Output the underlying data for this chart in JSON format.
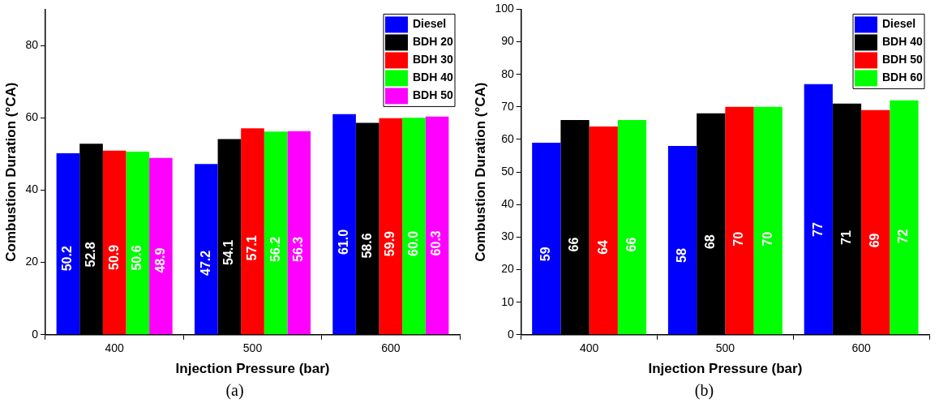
{
  "chart_data": [
    {
      "type": "bar",
      "xlabel": "Injection Pressure (bar)",
      "ylabel": "Combustion Duration (°CA)",
      "categories": [
        "400",
        "500",
        "600"
      ],
      "ylim": [
        0,
        90
      ],
      "yticks": [
        0,
        20,
        40,
        60,
        80
      ],
      "grid": false,
      "legend": "top right",
      "annotations": [
        "(a)"
      ],
      "series": [
        {
          "name": "Diesel",
          "color": "#0000ff",
          "values": [
            50.2,
            47.2,
            61.0
          ],
          "value_labels": [
            "50.2",
            "47.2",
            "61.0"
          ]
        },
        {
          "name": "BDH 20",
          "color": "#000000",
          "values": [
            52.8,
            54.1,
            58.6
          ],
          "value_labels": [
            "52.8",
            "54.1",
            "58.6"
          ]
        },
        {
          "name": "BDH 30",
          "color": "#ff0000",
          "values": [
            50.9,
            57.1,
            59.9
          ],
          "value_labels": [
            "50.9",
            "57.1",
            "59.9"
          ]
        },
        {
          "name": "BDH 40",
          "color": "#00ff00",
          "values": [
            50.6,
            56.2,
            60.0
          ],
          "value_labels": [
            "50.6",
            "56.2",
            "60.0"
          ]
        },
        {
          "name": "BDH 50",
          "color": "#ff00ff",
          "values": [
            48.9,
            56.3,
            60.3
          ],
          "value_labels": [
            "48.9",
            "56.3",
            "60.3"
          ]
        }
      ]
    },
    {
      "type": "bar",
      "xlabel": "Injection Pressure (bar)",
      "ylabel": "Combustion Duration (°CA)",
      "categories": [
        "400",
        "500",
        "600"
      ],
      "ylim": [
        0,
        100
      ],
      "yticks": [
        0,
        10,
        20,
        30,
        40,
        50,
        60,
        70,
        80,
        90,
        100
      ],
      "grid": false,
      "legend": "top right",
      "data_labels": true,
      "annotations": [
        "(b)"
      ],
      "series": [
        {
          "name": "Diesel",
          "color": "#0000ff",
          "values": [
            59,
            58,
            77
          ]
        },
        {
          "name": "BDH 40",
          "color": "#000000",
          "values": [
            66,
            68,
            71
          ]
        },
        {
          "name": "BDH 50",
          "color": "#ff0000",
          "values": [
            64,
            70,
            69
          ]
        },
        {
          "name": "BDH 60",
          "color": "#00ff00",
          "values": [
            66,
            70,
            72
          ]
        }
      ]
    }
  ]
}
